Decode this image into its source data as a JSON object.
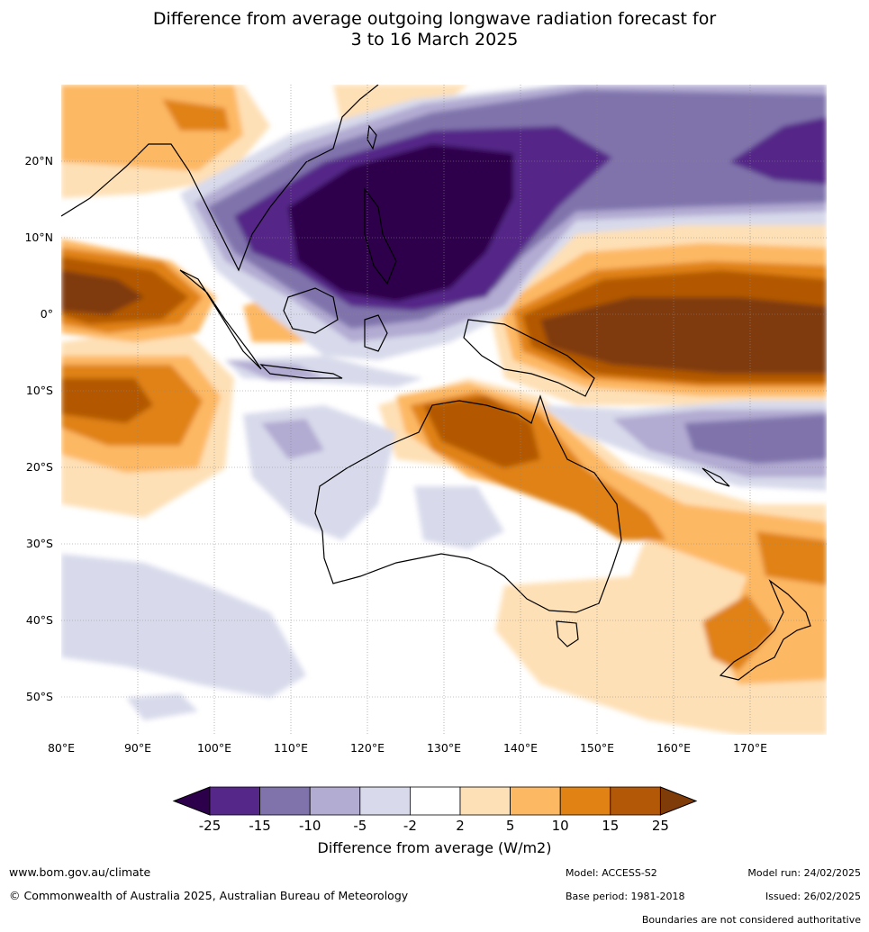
{
  "title": {
    "line1": "Difference from average outgoing longwave radiation forecast for",
    "line2": "3 to 16 March 2025"
  },
  "map": {
    "lat_ticks": [
      "20°N",
      "10°N",
      "0°",
      "10°S",
      "20°S",
      "30°S",
      "40°S",
      "50°S"
    ],
    "lon_ticks": [
      "80°E",
      "90°E",
      "100°E",
      "110°E",
      "120°E",
      "130°E",
      "140°E",
      "150°E",
      "160°E",
      "170°E"
    ]
  },
  "colorbar": {
    "label": "Difference from average (W/m2)",
    "ticks": [
      "-25",
      "-15",
      "-10",
      "-5",
      "-2",
      "2",
      "5",
      "10",
      "15",
      "25"
    ],
    "colors": [
      "#2d004b",
      "#542788",
      "#8073ac",
      "#b2abd2",
      "#d8daeb",
      "#ffffff",
      "#fee0b6",
      "#fdb863",
      "#e08214",
      "#b35806",
      "#7f3b08"
    ]
  },
  "footer": {
    "website": "www.bom.gov.au/climate",
    "copyright": "© Commonwealth of Australia 2025, Australian Bureau of Meteorology",
    "model": "Model: ACCESS-S2",
    "base_period": "Base period: 1981-2018",
    "model_run": "Model run: 24/02/2025",
    "issued": "Issued: 26/02/2025",
    "disclaimer": "Boundaries are not considered authoritative"
  }
}
